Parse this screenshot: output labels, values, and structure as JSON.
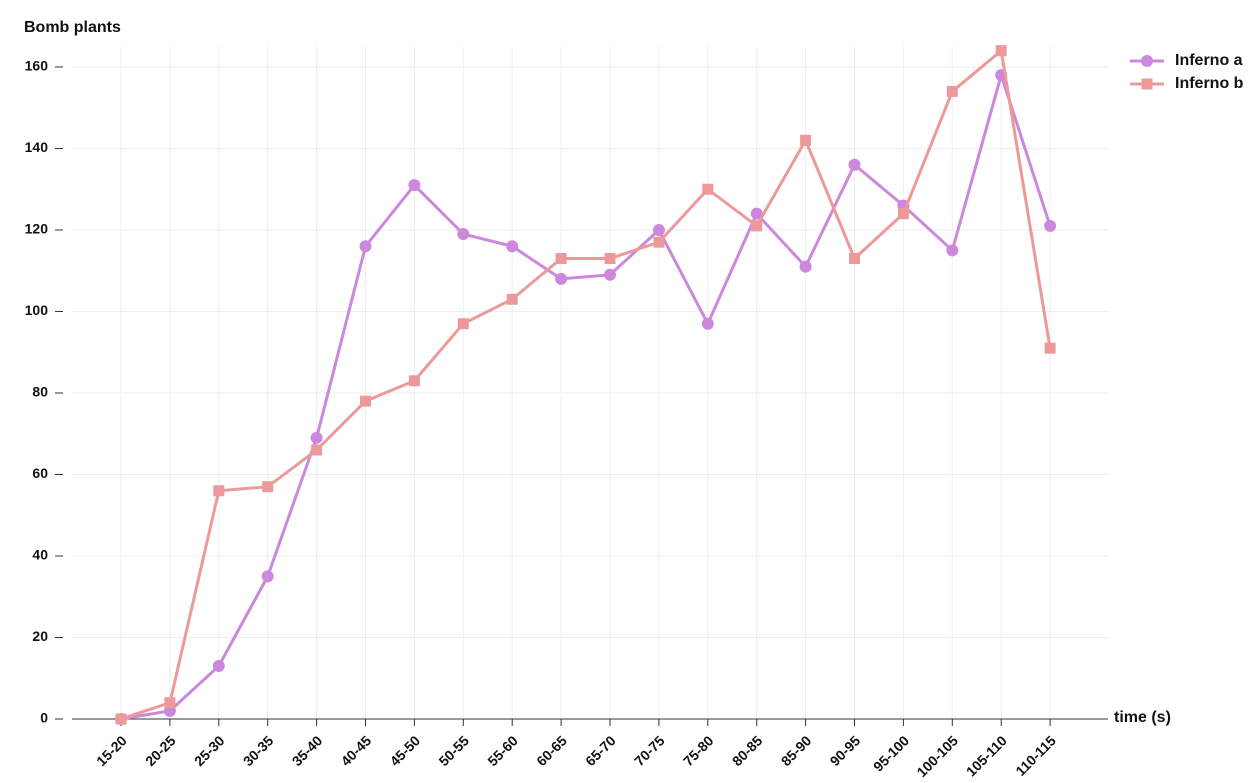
{
  "chart_data": {
    "type": "line",
    "y_label": "Bomb plants",
    "x_label": "time (s)",
    "categories": [
      "15-20",
      "20-25",
      "25-30",
      "30-35",
      "35-40",
      "40-45",
      "45-50",
      "50-55",
      "55-60",
      "60-65",
      "65-70",
      "70-75",
      "75-80",
      "80-85",
      "85-90",
      "90-95",
      "95-100",
      "100-105",
      "105-110",
      "110-115"
    ],
    "series": [
      {
        "name": "Inferno a",
        "color": "#cc88dd",
        "marker": "circle",
        "values": [
          0,
          2,
          13,
          35,
          69,
          116,
          131,
          119,
          116,
          108,
          109,
          120,
          97,
          124,
          111,
          136,
          126,
          115,
          158,
          121
        ]
      },
      {
        "name": "Inferno b",
        "color": "#ee9999",
        "marker": "square",
        "values": [
          0,
          4,
          56,
          57,
          66,
          78,
          83,
          97,
          103,
          113,
          113,
          117,
          130,
          121,
          142,
          113,
          124,
          154,
          164,
          91
        ]
      }
    ],
    "ylim": [
      0,
      165
    ],
    "yticks": [
      0,
      20,
      40,
      60,
      80,
      100,
      120,
      140,
      160
    ],
    "grid": true,
    "legend": "top-right"
  }
}
